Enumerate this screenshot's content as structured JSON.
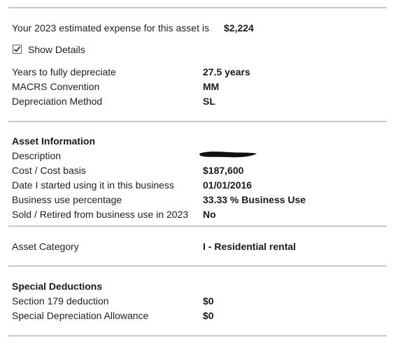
{
  "summary": {
    "expense_label": "Your 2023 estimated expense for this asset is",
    "expense_value": "$2,224"
  },
  "show_details": {
    "label": "Show Details",
    "checked": true
  },
  "depreciation": [
    {
      "label": "Years to fully depreciate",
      "value": "27.5 years"
    },
    {
      "label": "MACRS Convention",
      "value": "MM"
    },
    {
      "label": "Depreciation Method",
      "value": "SL"
    }
  ],
  "asset_info": {
    "heading": "Asset Information",
    "description_label": "Description",
    "rows": [
      {
        "label": "Cost / Cost basis",
        "value": "$187,600"
      },
      {
        "label": "Date I started using it in this business",
        "value": "01/01/2016"
      },
      {
        "label": "Business use percentage",
        "value": "33.33 % Business Use"
      },
      {
        "label": "Sold / Retired from business use in 2023",
        "value": "No"
      }
    ]
  },
  "asset_category": {
    "label": "Asset Category",
    "value": "I - Residential rental"
  },
  "special_deductions": {
    "heading": "Special Deductions",
    "rows": [
      {
        "label": "Section 179 deduction",
        "value": "$0"
      },
      {
        "label": "Special Depreciation Allowance",
        "value": "$0"
      }
    ]
  }
}
